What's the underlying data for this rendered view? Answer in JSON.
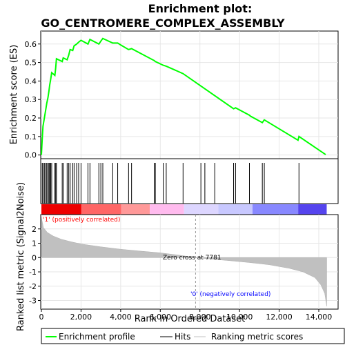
{
  "chart_data": {
    "type": "line",
    "title_line1": "Enrichment plot:",
    "title_line2": "GO_CENTROMERE_COMPLEX_ASSEMBLY",
    "xlabel": "Rank in Ordered Dataset",
    "ylabel_top": "Enrichment score (ES)",
    "ylabel_bottom": "Ranked list metric (Signal2Noise)",
    "x_ticks": [
      0,
      2000,
      4000,
      6000,
      8000,
      10000,
      12000,
      14000
    ],
    "x_tick_labels": [
      "0",
      "2,000",
      "4,000",
      "6,000",
      "8,000",
      "10,000",
      "12,000",
      "14,000"
    ],
    "xlim": [
      0,
      15000
    ],
    "es_ylim": [
      -0.02,
      0.67
    ],
    "es_y_ticks": [
      0.0,
      0.1,
      0.2,
      0.3,
      0.4,
      0.5,
      0.6
    ],
    "es_y_tick_labels": [
      "0.0",
      "0.1",
      "0.2",
      "0.3",
      "0.4",
      "0.5",
      "0.6"
    ],
    "metric_ylim": [
      -3.6,
      3.0
    ],
    "metric_y_ticks": [
      2,
      1,
      0,
      -1,
      -2,
      -3
    ],
    "metric_y_tick_labels": [
      "2",
      "1",
      "0",
      "-1",
      "-2",
      "-3"
    ],
    "enrichment_profile": [
      [
        0,
        0.0
      ],
      [
        40,
        0.08
      ],
      [
        80,
        0.155
      ],
      [
        150,
        0.2
      ],
      [
        220,
        0.245
      ],
      [
        270,
        0.28
      ],
      [
        330,
        0.31
      ],
      [
        380,
        0.345
      ],
      [
        420,
        0.38
      ],
      [
        470,
        0.41
      ],
      [
        520,
        0.445
      ],
      [
        680,
        0.43
      ],
      [
        720,
        0.47
      ],
      [
        760,
        0.52
      ],
      [
        1050,
        0.505
      ],
      [
        1100,
        0.525
      ],
      [
        1300,
        0.515
      ],
      [
        1380,
        0.54
      ],
      [
        1450,
        0.57
      ],
      [
        1580,
        0.565
      ],
      [
        1650,
        0.59
      ],
      [
        1780,
        0.6
      ],
      [
        1880,
        0.61
      ],
      [
        2000,
        0.62
      ],
      [
        2350,
        0.6
      ],
      [
        2450,
        0.625
      ],
      [
        2900,
        0.6
      ],
      [
        3000,
        0.615
      ],
      [
        3100,
        0.63
      ],
      [
        3600,
        0.605
      ],
      [
        3850,
        0.605
      ],
      [
        4000,
        0.595
      ],
      [
        4400,
        0.57
      ],
      [
        4550,
        0.575
      ],
      [
        5700,
        0.51
      ],
      [
        5750,
        0.505
      ],
      [
        6150,
        0.485
      ],
      [
        6300,
        0.48
      ],
      [
        7150,
        0.44
      ],
      [
        9700,
        0.25
      ],
      [
        9800,
        0.255
      ],
      [
        10500,
        0.215
      ],
      [
        10550,
        0.21
      ],
      [
        11150,
        0.175
      ],
      [
        11250,
        0.19
      ],
      [
        12950,
        0.08
      ],
      [
        13000,
        0.1
      ],
      [
        14350,
        0.002
      ]
    ],
    "hits": [
      40,
      80,
      150,
      220,
      270,
      330,
      380,
      420,
      470,
      520,
      680,
      720,
      760,
      1050,
      1100,
      1300,
      1380,
      1450,
      1580,
      1650,
      1780,
      1880,
      2000,
      2350,
      2450,
      2900,
      3000,
      3100,
      3600,
      3850,
      4400,
      4550,
      5700,
      5750,
      6150,
      6300,
      7150,
      8050,
      8250,
      8750,
      9700,
      9800,
      10500,
      11150,
      11250,
      13000
    ],
    "metric_curve": [
      [
        0,
        2.8
      ],
      [
        100,
        2.1
      ],
      [
        300,
        1.75
      ],
      [
        600,
        1.5
      ],
      [
        1000,
        1.28
      ],
      [
        1500,
        1.1
      ],
      [
        2000,
        0.95
      ],
      [
        3000,
        0.75
      ],
      [
        4000,
        0.58
      ],
      [
        5000,
        0.45
      ],
      [
        6000,
        0.33
      ],
      [
        7000,
        0.16
      ],
      [
        7781,
        0.0
      ],
      [
        8500,
        -0.1
      ],
      [
        9500,
        -0.22
      ],
      [
        10500,
        -0.35
      ],
      [
        11500,
        -0.5
      ],
      [
        12500,
        -0.75
      ],
      [
        13200,
        -1.0
      ],
      [
        13800,
        -1.4
      ],
      [
        14100,
        -1.9
      ],
      [
        14300,
        -2.5
      ],
      [
        14400,
        -3.4
      ]
    ],
    "zero_cross_rank": 7781,
    "zero_cross_label": "Zero cross at 7781",
    "pos_label": "'1' (positively correlated)",
    "neg_label": "'0' (negatively correlated)",
    "legend": [
      {
        "label": "Enrichment profile",
        "color": "#00ff00"
      },
      {
        "label": "Hits",
        "color": "#000000"
      },
      {
        "label": "Ranking metric scores",
        "color": "#c0c0c0"
      }
    ],
    "colors": {
      "profile": "#00ff00",
      "metric_fill": "#c0c0c0",
      "pos_label": "#ff0000",
      "neg_label": "#0000ff"
    }
  }
}
